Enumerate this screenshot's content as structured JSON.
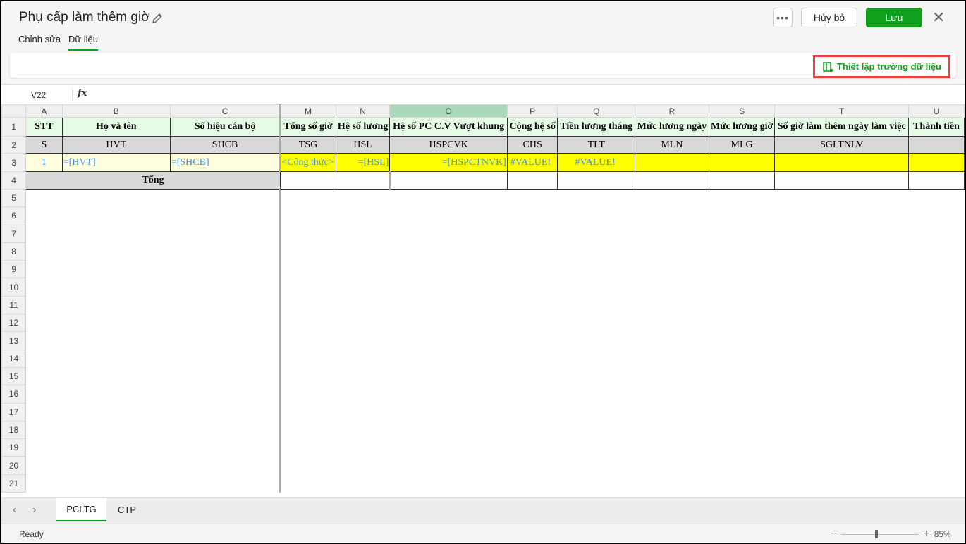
{
  "header": {
    "title": "Phụ cấp làm thêm giờ",
    "more": "•••",
    "cancel": "Hủy bỏ",
    "save": "Lưu",
    "close": "✕"
  },
  "tabs": [
    "Chỉnh sửa",
    "Dữ liệu"
  ],
  "toolbar": {
    "setup_fields": "Thiết lập trường dữ liệu"
  },
  "formula_bar": {
    "cell_ref": "V22",
    "fx": "fx",
    "value": ""
  },
  "sheet": {
    "selected_column": "O",
    "columns": [
      {
        "letter": "A",
        "header": "STT",
        "code": "S",
        "row3": "1"
      },
      {
        "letter": "B",
        "header": "Họ và tên",
        "code": "HVT",
        "row3": "=[HVT]"
      },
      {
        "letter": "C",
        "header": "Số hiệu cán bộ",
        "code": "SHCB",
        "row3": "=[SHCB]"
      },
      {
        "letter": "M",
        "header": "Tổng số giờ",
        "code": "TSG",
        "row3": "<Công thức>"
      },
      {
        "letter": "N",
        "header": "Hệ số lương",
        "code": "HSL",
        "row3": "=[HSL]"
      },
      {
        "letter": "O",
        "header": "Hệ số PC C.V Vượt khung",
        "code": "HSPCVK",
        "row3": "=[HSPCTNVK]"
      },
      {
        "letter": "P",
        "header": "Cộng hệ số",
        "code": "CHS",
        "row3": "#VALUE!"
      },
      {
        "letter": "Q",
        "header": "Tiền lương tháng",
        "code": "TLT",
        "row3": "#VALUE!"
      },
      {
        "letter": "R",
        "header": "Mức lương ngày",
        "code": "MLN",
        "row3": ""
      },
      {
        "letter": "S",
        "header": "Mức lương giờ",
        "code": "MLG",
        "row3": ""
      },
      {
        "letter": "T",
        "header": "Số giờ làm thêm ngày làm việc",
        "code": "SGLTNLV",
        "row3": ""
      },
      {
        "letter": "U",
        "header": "Thành tiền",
        "code": "",
        "row3": ""
      }
    ],
    "total_label": "Tổng",
    "row_count": 21,
    "colors": {
      "header_green": "#e6fbe6",
      "code_gray": "#d9d9d9",
      "yellow": "#ffff00",
      "light_yellow": "#ffffe0",
      "formula_blue": "#3f8fef"
    }
  },
  "sheet_tabs": [
    "PCLTG",
    "CTP"
  ],
  "active_sheet": "PCLTG",
  "status": {
    "text": "Ready",
    "zoom": "85%"
  }
}
